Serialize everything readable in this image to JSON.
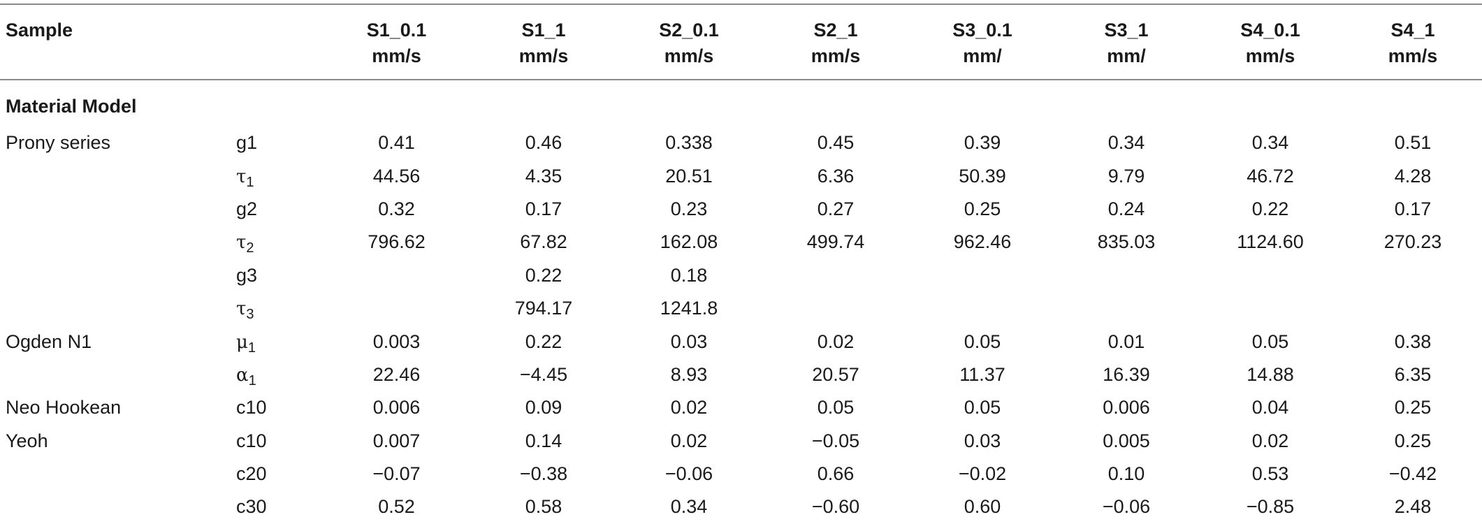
{
  "table": {
    "headers": [
      {
        "line1": "Sample",
        "line2": ""
      },
      {
        "line1": "",
        "line2": ""
      },
      {
        "line1": "S1_0.1",
        "line2": "mm/s"
      },
      {
        "line1": "S1_1",
        "line2": "mm/s"
      },
      {
        "line1": "S2_0.1",
        "line2": "mm/s"
      },
      {
        "line1": "S2_1",
        "line2": "mm/s"
      },
      {
        "line1": "S3_0.1",
        "line2": "mm/"
      },
      {
        "line1": "S3_1",
        "line2": "mm/"
      },
      {
        "line1": "S4_0.1",
        "line2": "mm/s"
      },
      {
        "line1": "S4_1",
        "line2": "mm/s"
      }
    ],
    "section_title": "Material Model",
    "rows": [
      {
        "model": "Prony series",
        "param": "g1",
        "values": [
          "0.41",
          "0.46",
          "0.338",
          "0.45",
          "0.39",
          "0.34",
          "0.34",
          "0.51"
        ]
      },
      {
        "model": "",
        "param": "τ",
        "param_sub": "1",
        "values": [
          "44.56",
          "4.35",
          "20.51",
          "6.36",
          "50.39",
          "9.79",
          "46.72",
          "4.28"
        ]
      },
      {
        "model": "",
        "param": "g2",
        "values": [
          "0.32",
          "0.17",
          "0.23",
          "0.27",
          "0.25",
          "0.24",
          "0.22",
          "0.17"
        ]
      },
      {
        "model": "",
        "param": "τ",
        "param_sub": "2",
        "values": [
          "796.62",
          "67.82",
          "162.08",
          "499.74",
          "962.46",
          "835.03",
          "1124.60",
          "270.23"
        ]
      },
      {
        "model": "",
        "param": "g3",
        "values": [
          "",
          "0.22",
          "0.18",
          "",
          "",
          "",
          "",
          ""
        ]
      },
      {
        "model": "",
        "param": "τ",
        "param_sub": "3",
        "values": [
          "",
          "794.17",
          "1241.8",
          "",
          "",
          "",
          "",
          ""
        ]
      },
      {
        "model": "Ogden N1",
        "param": "μ",
        "param_sub": "1",
        "values": [
          "0.003",
          "0.22",
          "0.03",
          "0.02",
          "0.05",
          "0.01",
          "0.05",
          "0.38"
        ]
      },
      {
        "model": "",
        "param": "α",
        "param_sub": "1",
        "values": [
          "22.46",
          "−4.45",
          "8.93",
          "20.57",
          "11.37",
          "16.39",
          "14.88",
          "6.35"
        ]
      },
      {
        "model": "Neo Hookean",
        "param": "c10",
        "values": [
          "0.006",
          "0.09",
          "0.02",
          "0.05",
          "0.05",
          "0.006",
          "0.04",
          "0.25"
        ]
      },
      {
        "model": "Yeoh",
        "param": "c10",
        "values": [
          "0.007",
          "0.14",
          "0.02",
          "−0.05",
          "0.03",
          "0.005",
          "0.02",
          "0.25"
        ]
      },
      {
        "model": "",
        "param": "c20",
        "values": [
          "−0.07",
          "−0.38",
          "−0.06",
          "0.66",
          "−0.02",
          "0.10",
          "0.53",
          "−0.42"
        ]
      },
      {
        "model": "",
        "param": "c30",
        "values": [
          "0.52",
          "0.58",
          "0.34",
          "−0.60",
          "0.60",
          "−0.06",
          "−0.85",
          "2.48"
        ]
      }
    ]
  }
}
